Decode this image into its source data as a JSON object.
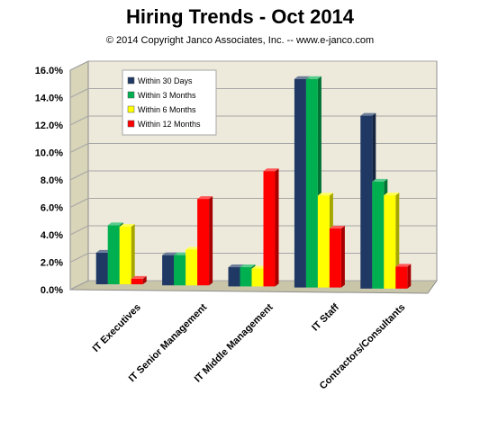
{
  "chart_data": {
    "type": "bar",
    "title": "Hiring Trends - Oct 2014",
    "subtitle": "© 2014 Copyright Janco Associates, Inc. -- www.e-janco.com",
    "categories": [
      "IT Executives",
      "IT Senior Management",
      "IT Middle Management",
      "IT Staff",
      "Contractors/Consultants"
    ],
    "series": [
      {
        "name": "Within 30 Days",
        "color": "#1f3864",
        "values": [
          2.3,
          2.2,
          1.4,
          15.2,
          12.6
        ]
      },
      {
        "name": "Within 3 Months",
        "color": "#00b050",
        "values": [
          4.3,
          2.2,
          1.4,
          15.2,
          7.8
        ]
      },
      {
        "name": "Within 6 Months",
        "color": "#ffff00",
        "values": [
          4.2,
          2.6,
          1.3,
          6.7,
          6.8
        ]
      },
      {
        "name": "Within 12 Months",
        "color": "#ff0000",
        "values": [
          0.4,
          6.3,
          8.4,
          4.3,
          1.6
        ]
      }
    ],
    "ylim": [
      0,
      16
    ],
    "yticks": [
      "0.0%",
      "2.0%",
      "4.0%",
      "6.0%",
      "8.0%",
      "10.0%",
      "12.0%",
      "14.0%",
      "16.0%"
    ],
    "grid": true,
    "legend_position": "top-left"
  }
}
